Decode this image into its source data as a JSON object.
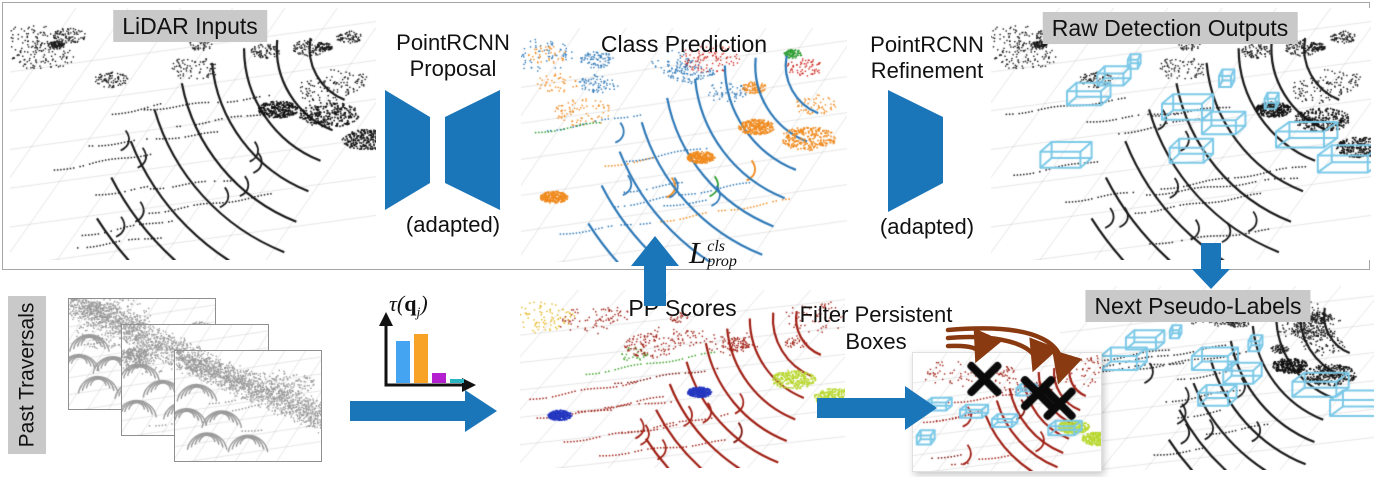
{
  "colors": {
    "accent_blue": "#1b76b9",
    "box_cyan": "#7cc9e8",
    "label_bg": "#c9c9c9",
    "frame_border": "#a6a6a6",
    "brown_arrow": "#8a3a10"
  },
  "top_row": {
    "lidar_label": "LiDAR Inputs",
    "proposal": {
      "line1": "PointRCNN",
      "line2": "Proposal",
      "note": "(adapted)"
    },
    "class_label": "Class Prediction",
    "refinement": {
      "line1": "PointRCNN",
      "line2": "Refinement",
      "note": "(adapted)"
    },
    "raw_label": "Raw Detection Outputs"
  },
  "loss": {
    "base": "L",
    "sup": "cls",
    "sub": "prop"
  },
  "bottom_row": {
    "past_label": "Past Traversals",
    "tau": {
      "prefix": "τ(",
      "arg": "q",
      "sub": "j",
      "suffix": ")"
    },
    "pp_label": "PP Scores",
    "filter": {
      "line1": "Filter Persistent",
      "line2": "Boxes"
    },
    "next_label": "Next Pseudo-Labels"
  },
  "tau_chart": {
    "type": "bar",
    "bars": [
      {
        "name": "blue",
        "color": "#45a4f1",
        "value": 0.8
      },
      {
        "name": "orange",
        "color": "#f9a326",
        "value": 0.95
      },
      {
        "name": "purple",
        "color": "#b41fd0",
        "value": 0.2
      },
      {
        "name": "teal",
        "color": "#2ab5c3",
        "value": 0.08
      }
    ]
  }
}
